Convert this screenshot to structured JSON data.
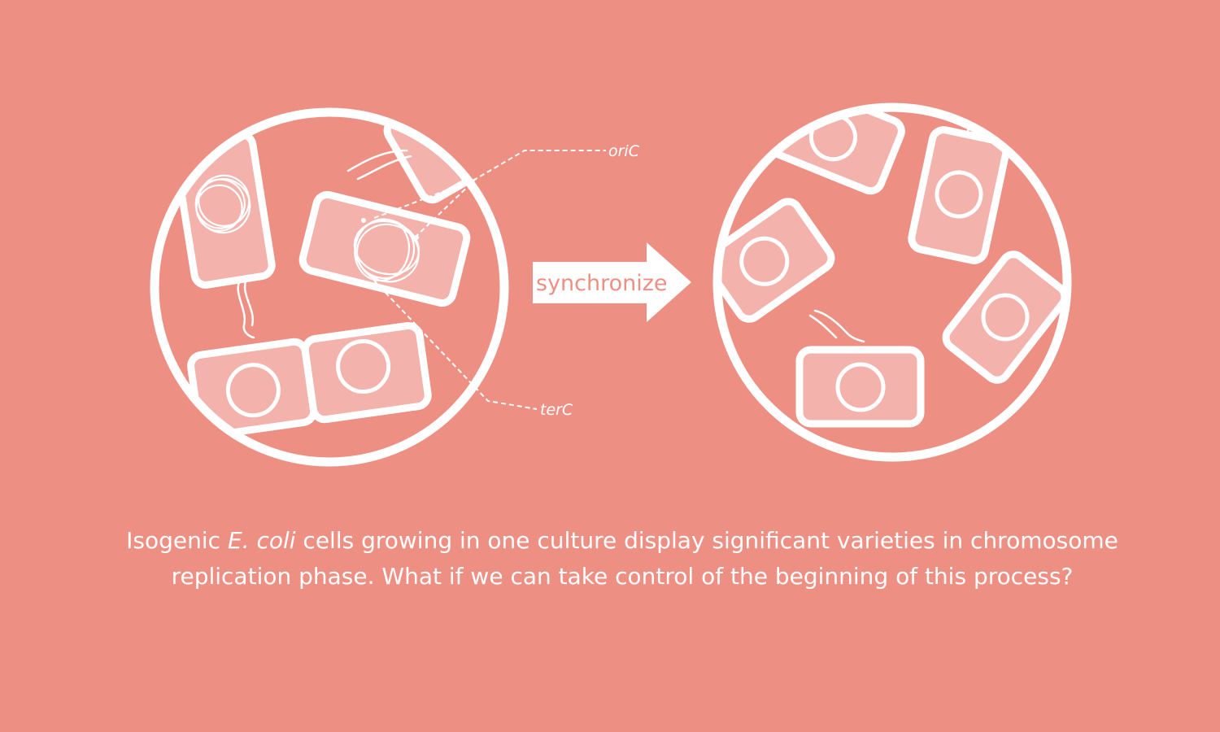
{
  "labels": {
    "ori": "oriC",
    "ter": "terC",
    "arrow": "synchronize"
  },
  "caption": {
    "part1": "Isogenic ",
    "species": "E. coli",
    "part2": " cells growing in one culture display significant varieties in chromosome replication phase. What if we can take control of the beginning of this process?"
  },
  "colors": {
    "background": "#ee8f84",
    "cell_fill": "#f3b2ab",
    "outline": "#ffffff"
  }
}
